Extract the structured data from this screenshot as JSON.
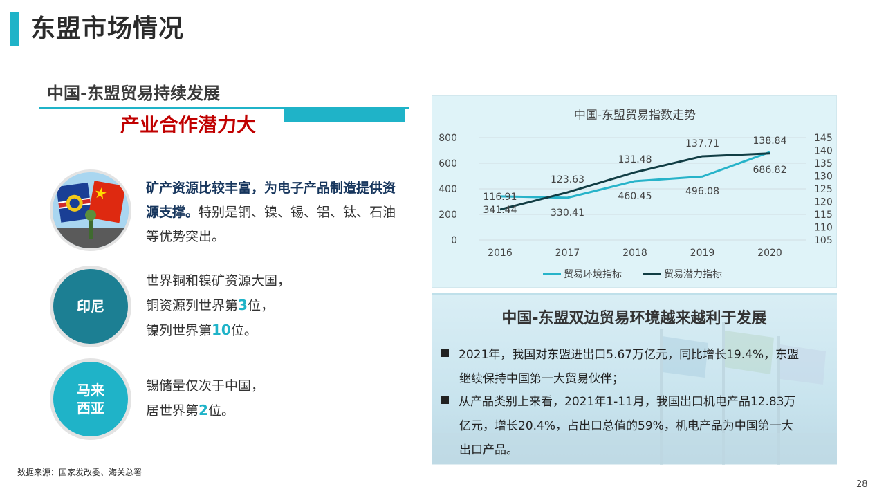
{
  "header": {
    "title": "东盟市场情况"
  },
  "headline": {
    "line1": "中国-东盟贸易持续发展",
    "line2": "产业合作潜力大"
  },
  "intro": {
    "bold": "矿产资源比较丰富，为电子产品制造提供资源支撑。",
    "normal": "特别是铜、镍、锡、铝、钛、石油等优势突出。"
  },
  "indonesia": {
    "label": "印尼",
    "line1": "世界铜和镍矿资源大国，",
    "line2_pre": "铜资源列世界第",
    "line2_num": "3",
    "line2_post": "位，",
    "line3_pre": "镍列世界第",
    "line3_num": "10",
    "line3_post": "位。"
  },
  "malaysia": {
    "label_l1": "马来",
    "label_l2": "西亚",
    "line1": "锡储量仅次于中国，",
    "line2_pre": "居世界第",
    "line2_num": "2",
    "line2_post": "位。"
  },
  "colors": {
    "accent": "#1fb3c8",
    "dark_accent": "#1c7f93",
    "red": "#c00000",
    "series1": "#27b3c9",
    "series2": "#113d44"
  },
  "chart_data": {
    "type": "line",
    "title": "中国-东盟贸易指数走势",
    "categories": [
      "2016",
      "2017",
      "2018",
      "2019",
      "2020"
    ],
    "y_left": {
      "range": [
        0,
        800
      ],
      "ticks": [
        "800",
        "600",
        "400",
        "200",
        "0"
      ]
    },
    "y_right": {
      "range": [
        105,
        145
      ],
      "ticks": [
        "145",
        "140",
        "135",
        "130",
        "125",
        "120",
        "115",
        "110",
        "105"
      ]
    },
    "series": [
      {
        "name": "贸易环境指标",
        "axis": "left",
        "values": [
          341.44,
          330.41,
          460.45,
          496.08,
          686.82
        ],
        "labels": [
          "341.44",
          "330.41",
          "460.45",
          "496.08",
          "686.82"
        ]
      },
      {
        "name": "贸易潜力指标",
        "axis": "right",
        "values": [
          116.91,
          123.63,
          131.48,
          137.71,
          138.84
        ],
        "labels": [
          "116.91",
          "123.63",
          "131.48",
          "137.71",
          "138.84"
        ]
      }
    ],
    "grid": "horizontal",
    "legend": "bottom"
  },
  "info": {
    "title": "中国-东盟双边贸易环境越来越利于发展",
    "bullet1_l1": "2021年，我国对东盟进出口5.67万亿元，同比增长19.4%，东盟",
    "bullet1_l2": "继续保持中国第一大贸易伙伴；",
    "bullet2_l1": "从产品类别上来看，2021年1-11月，我国出口机电产品12.83万",
    "bullet2_l2": "亿元，增长20.4%，占出口总值的59%，机电产品为中国第一大",
    "bullet2_l3": "出口产品。"
  },
  "footer": {
    "source": "数据来源：国家发改委、海关总署",
    "page": "28"
  }
}
